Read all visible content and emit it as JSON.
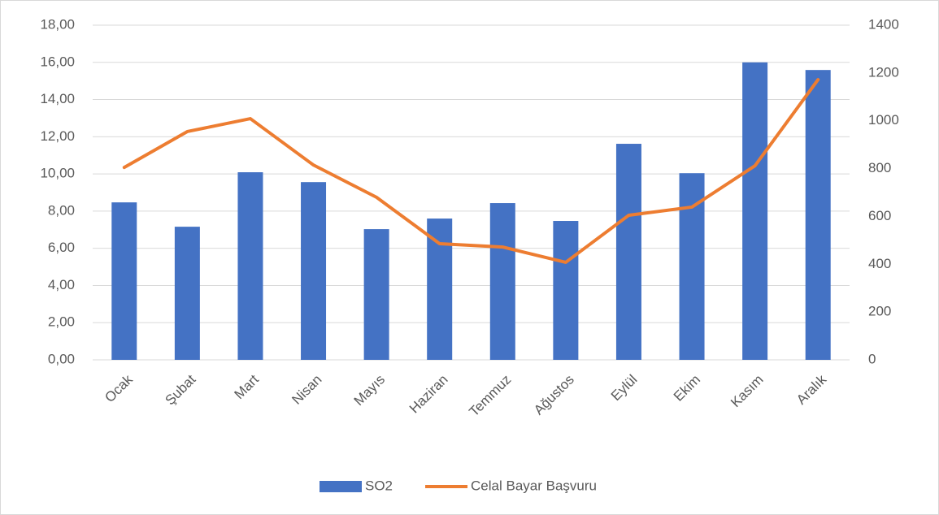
{
  "chart_data": {
    "type": "combo",
    "categories": [
      "Ocak",
      "Şubat",
      "Mart",
      "Nisan",
      "Mayıs",
      "Haziran",
      "Temmuz",
      "Ağustos",
      "Eylül",
      "Ekim",
      "Kasım",
      "Aralık"
    ],
    "series": [
      {
        "name": "SO2",
        "type": "bar",
        "color": "#4472c4",
        "values": [
          8.47,
          7.16,
          10.09,
          9.56,
          7.03,
          7.6,
          8.43,
          7.47,
          11.62,
          10.04,
          16.0,
          15.59
        ]
      },
      {
        "name": "Celal Bayar Başvuru",
        "type": "line",
        "axis": "y2",
        "color": "#ed7d31",
        "values": [
          805,
          955,
          1009,
          815,
          680,
          486,
          472,
          408,
          605,
          639,
          812,
          1172
        ]
      }
    ],
    "ylim": [
      0,
      18
    ],
    "yticks": [
      {
        "value": 0,
        "label": "0,00"
      },
      {
        "value": 2,
        "label": "2,00"
      },
      {
        "value": 4,
        "label": "4,00"
      },
      {
        "value": 6,
        "label": "6,00"
      },
      {
        "value": 8,
        "label": "8,00"
      },
      {
        "value": 10,
        "label": "10,00"
      },
      {
        "value": 12,
        "label": "12,00"
      },
      {
        "value": 14,
        "label": "14,00"
      },
      {
        "value": 16,
        "label": "16,00"
      },
      {
        "value": 18,
        "label": "18,00"
      }
    ],
    "y2lim": [
      0,
      1400
    ],
    "y2ticks": [
      0,
      200,
      400,
      600,
      800,
      1000,
      1200,
      1400
    ],
    "grid": true,
    "legend": "bottom"
  }
}
